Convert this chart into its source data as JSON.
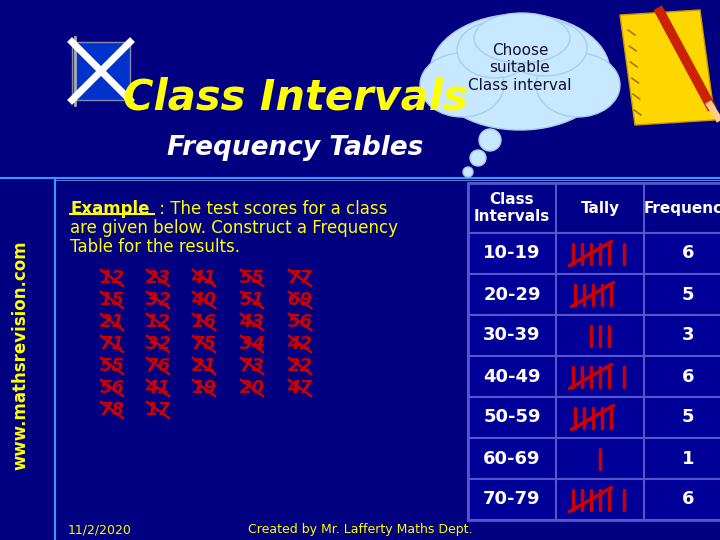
{
  "bg_color": "#000080",
  "title_main": "Class Intervals",
  "title_color": "#FFFF00",
  "subtitle": "Frequency Tables",
  "subtitle_color": "#FFFFFF",
  "cloud_text": "Choose\nsuitable\nClass interval",
  "numbers_col1": [
    "12",
    "15",
    "21",
    "71",
    "55",
    "56",
    "78"
  ],
  "numbers_col2": [
    "23",
    "32",
    "12",
    "32",
    "76",
    "41",
    "17"
  ],
  "numbers_col3": [
    "41",
    "40",
    "16",
    "75",
    "21",
    "19"
  ],
  "numbers_col4": [
    "55",
    "51",
    "43",
    "34",
    "73",
    "20"
  ],
  "numbers_col5": [
    "77",
    "69",
    "56",
    "42",
    "22",
    "47"
  ],
  "table_headers": [
    "Class\nIntervals",
    "Tally",
    "Frequency"
  ],
  "table_intervals": [
    "10-19",
    "20-29",
    "30-39",
    "40-49",
    "50-59",
    "60-69",
    "70-79"
  ],
  "table_frequencies": [
    "6",
    "5",
    "3",
    "6",
    "5",
    "1",
    "6"
  ],
  "tally_counts": [
    6,
    5,
    3,
    6,
    5,
    1,
    6
  ],
  "table_bg": "#000099",
  "table_line_color": "#5555CC",
  "tally_color": "#CC0000",
  "text_color": "#FFFFFF",
  "example_underline": "Example",
  "example_rest1": " : The test scores for a class",
  "example_line2": "are given below. Construct a Frequency",
  "example_line3": "Table for the results.",
  "website_text": "www.mathsrevision.com",
  "website_color": "#FFFF00",
  "footer_left": "11/2/2020",
  "footer_center": "Created by Mr. Lafferty Maths Dept.",
  "footer_color": "#FFFF00"
}
